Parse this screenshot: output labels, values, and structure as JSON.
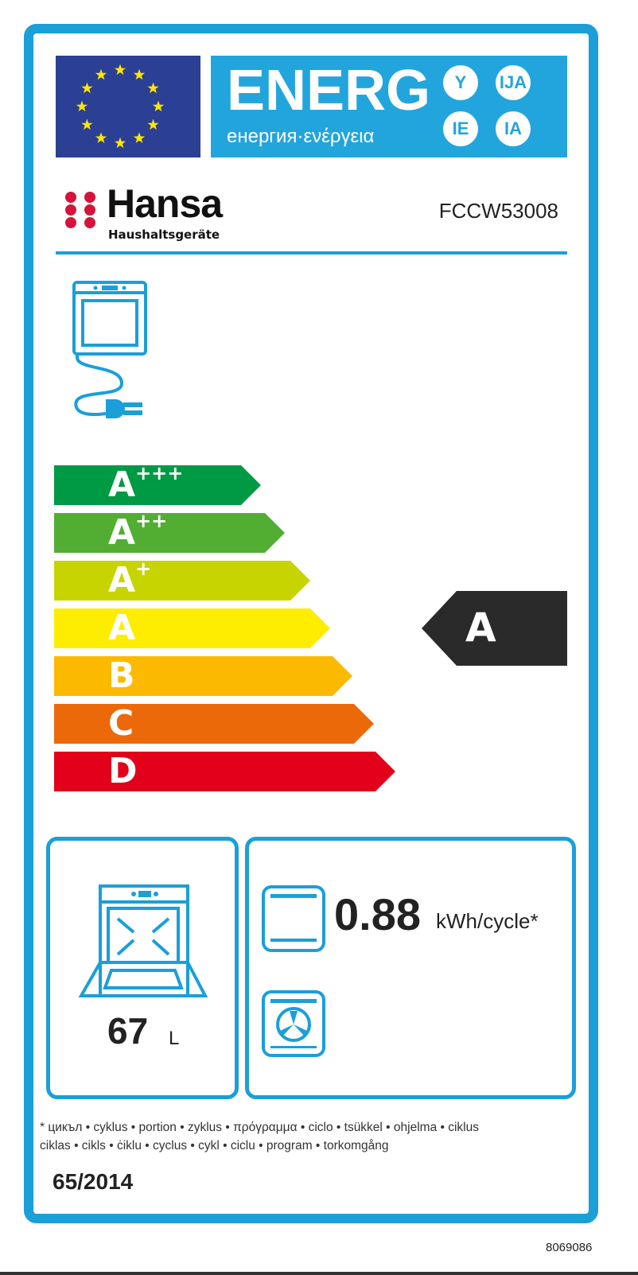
{
  "header": {
    "energy_title": "ENERG",
    "energy_subtitle": "енергия·ενέργεια",
    "suffixes": [
      "Y",
      "IJA",
      "IE",
      "IA"
    ]
  },
  "brand": {
    "name": "Hansa",
    "tagline": "Haushaltsgeräte"
  },
  "model": "FCCW53008",
  "scale": [
    {
      "letter": "A",
      "plus": "+++",
      "color": "#009a44"
    },
    {
      "letter": "A",
      "plus": "++",
      "color": "#52ae32"
    },
    {
      "letter": "A",
      "plus": "+",
      "color": "#c8d400"
    },
    {
      "letter": "A",
      "plus": "",
      "color": "#ffed00"
    },
    {
      "letter": "B",
      "plus": "",
      "color": "#fbba00"
    },
    {
      "letter": "C",
      "plus": "",
      "color": "#eb6909"
    },
    {
      "letter": "D",
      "plus": "",
      "color": "#e2001a"
    }
  ],
  "rating": {
    "class": "A",
    "color": "#2a2a2a"
  },
  "volume": {
    "value": "67",
    "unit": "L"
  },
  "energy_consumption": {
    "value": "0.88",
    "unit": "kWh/cycle*"
  },
  "footnote": {
    "line1": "* цикъл • cyklus • portion • zyklus • πρόγραμμα • ciclo • tsükkel • ohjelma • ciklus",
    "line2": "ciklas • cikls • ċiklu • cyclus • cykl • ciclu • program • torkomgång"
  },
  "regulation": "65/2014",
  "label_code": "8069086",
  "colors": {
    "frame": "#1a9fd9",
    "eu_blue": "#2b3f94",
    "energy_blue": "#22a5dd"
  }
}
